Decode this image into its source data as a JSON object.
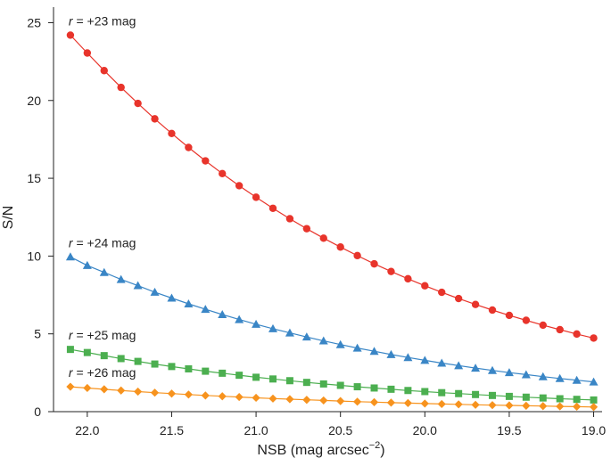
{
  "chart_data": {
    "type": "line",
    "title": "",
    "xlabel": "NSB (mag arcsec",
    "xlabel_sup": "−2",
    "xlabel_close": ")",
    "ylabel": "S/N",
    "xlim": [
      22.2,
      18.95
    ],
    "ylim": [
      0,
      26
    ],
    "x_inverted": true,
    "grid": false,
    "x_ticks": [
      22.0,
      21.5,
      21.0,
      20.5,
      20.0,
      19.5,
      19.0
    ],
    "x_tick_labels": [
      "22.0",
      "21.5",
      "21.0",
      "20.5",
      "20.0",
      "19.5",
      "19.0"
    ],
    "y_ticks": [
      0,
      5,
      10,
      15,
      20,
      25
    ],
    "y_tick_labels": [
      "0",
      "5",
      "10",
      "15",
      "20",
      "25"
    ],
    "x": [
      22.1,
      22.0,
      21.9,
      21.8,
      21.7,
      21.6,
      21.5,
      21.4,
      21.3,
      21.2,
      21.1,
      21.0,
      20.9,
      20.8,
      20.7,
      20.6,
      20.5,
      20.4,
      20.3,
      20.2,
      20.1,
      20.0,
      19.9,
      19.8,
      19.7,
      19.6,
      19.5,
      19.4,
      19.3,
      19.2,
      19.1,
      19.0
    ],
    "series": [
      {
        "name": "r = +23 mag",
        "label_italic": "r",
        "label_rest": " = +23 mag",
        "color": "#e8342b",
        "marker": "circle",
        "values": [
          24.2,
          23.05,
          21.92,
          20.84,
          19.81,
          18.82,
          17.88,
          16.98,
          16.12,
          15.3,
          14.52,
          13.78,
          13.07,
          12.4,
          11.76,
          11.15,
          10.58,
          10.03,
          9.5,
          9.01,
          8.54,
          8.09,
          7.67,
          7.27,
          6.89,
          6.53,
          6.19,
          5.87,
          5.56,
          5.27,
          4.99,
          4.73
        ]
      },
      {
        "name": "r = +24 mag",
        "label_italic": "r",
        "label_rest": " = +24 mag",
        "color": "#3a86c6",
        "marker": "triangle",
        "values": [
          9.95,
          9.4,
          8.95,
          8.5,
          8.1,
          7.68,
          7.3,
          6.93,
          6.58,
          6.24,
          5.92,
          5.62,
          5.33,
          5.06,
          4.8,
          4.55,
          4.31,
          4.09,
          3.88,
          3.67,
          3.48,
          3.3,
          3.12,
          2.96,
          2.8,
          2.65,
          2.51,
          2.38,
          2.25,
          2.13,
          2.02,
          1.91
        ]
      },
      {
        "name": "r = +25 mag",
        "label_italic": "r",
        "label_rest": " = +25 mag",
        "color": "#4caf50",
        "marker": "square",
        "values": [
          4.0,
          3.8,
          3.6,
          3.41,
          3.23,
          3.06,
          2.9,
          2.75,
          2.6,
          2.47,
          2.34,
          2.21,
          2.1,
          1.99,
          1.88,
          1.78,
          1.69,
          1.6,
          1.52,
          1.44,
          1.36,
          1.29,
          1.22,
          1.16,
          1.1,
          1.04,
          0.98,
          0.93,
          0.88,
          0.83,
          0.79,
          0.75
        ]
      },
      {
        "name": "r = +26 mag",
        "label_italic": "r",
        "label_rest": " = +26 mag",
        "color": "#f7931e",
        "marker": "diamond",
        "values": [
          1.6,
          1.52,
          1.44,
          1.36,
          1.29,
          1.22,
          1.16,
          1.1,
          1.04,
          0.99,
          0.94,
          0.89,
          0.84,
          0.8,
          0.76,
          0.72,
          0.68,
          0.64,
          0.61,
          0.58,
          0.55,
          0.52,
          0.49,
          0.47,
          0.44,
          0.42,
          0.4,
          0.38,
          0.36,
          0.34,
          0.32,
          0.3
        ]
      }
    ]
  }
}
